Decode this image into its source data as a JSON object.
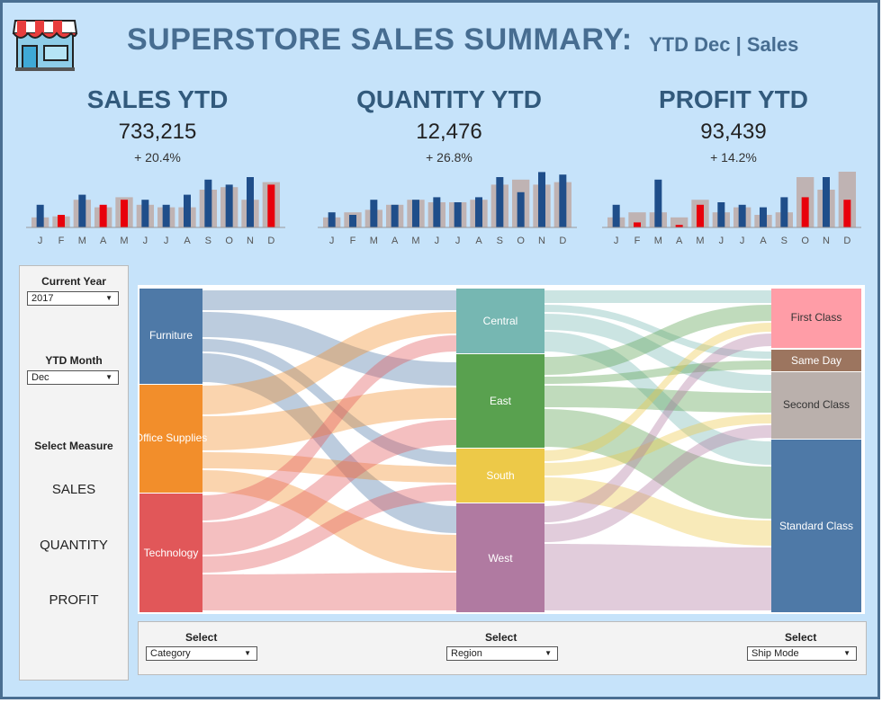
{
  "header": {
    "title": "SUPERSTORE SALES SUMMARY:",
    "subtitle": "YTD Dec | Sales",
    "store_icon": "storefront-icon"
  },
  "kpis": [
    {
      "label": "SALES YTD",
      "value": "733,215",
      "change": "+ 20.4%"
    },
    {
      "label": "QUANTITY YTD",
      "value": "12,476",
      "change": "+ 26.8%"
    },
    {
      "label": "PROFIT YTD",
      "value": "93,439",
      "change": "+ 14.2%"
    }
  ],
  "months": [
    "J",
    "F",
    "M",
    "A",
    "M",
    "J",
    "J",
    "A",
    "S",
    "O",
    "N",
    "D"
  ],
  "colors": {
    "current": "#1f4e8a",
    "current_highlight": "#e8000b",
    "previous": "#bfb3b3",
    "accent": "#476d91"
  },
  "chart_data": [
    {
      "type": "bar",
      "categories": [
        "J",
        "F",
        "M",
        "A",
        "M",
        "J",
        "J",
        "A",
        "S",
        "O",
        "N",
        "D"
      ],
      "series": [
        {
          "values": [
            0.45,
            0.25,
            0.65,
            0.45,
            0.55,
            0.55,
            0.45,
            0.65,
            0.95,
            0.85,
            1.0,
            0.85
          ]
        },
        {
          "values": [
            0.2,
            0.22,
            0.55,
            0.4,
            0.6,
            0.45,
            0.4,
            0.4,
            0.75,
            0.8,
            0.55,
            0.9
          ]
        }
      ],
      "highlight_months": [
        "F",
        "A",
        "M",
        "D"
      ]
    },
    {
      "type": "bar",
      "categories": [
        "J",
        "F",
        "M",
        "A",
        "M",
        "J",
        "J",
        "A",
        "S",
        "O",
        "N",
        "D"
      ],
      "series": [
        {
          "values": [
            0.3,
            0.25,
            0.55,
            0.45,
            0.55,
            0.6,
            0.5,
            0.6,
            1.0,
            0.7,
            1.1,
            1.05
          ]
        },
        {
          "values": [
            0.2,
            0.3,
            0.35,
            0.45,
            0.55,
            0.5,
            0.5,
            0.55,
            0.85,
            0.95,
            0.85,
            0.9
          ]
        }
      ]
    },
    {
      "type": "bar",
      "categories": [
        "J",
        "F",
        "M",
        "A",
        "M",
        "J",
        "J",
        "A",
        "S",
        "O",
        "N",
        "D"
      ],
      "series": [
        {
          "values": [
            0.45,
            0.1,
            0.95,
            0.05,
            0.45,
            0.5,
            0.45,
            0.4,
            0.6,
            0.6,
            1.0,
            0.55
          ]
        },
        {
          "values": [
            0.2,
            0.3,
            0.3,
            0.2,
            0.55,
            0.3,
            0.4,
            0.25,
            0.3,
            1.0,
            0.75,
            1.2
          ]
        }
      ],
      "highlight_months": [
        "F",
        "A",
        "M",
        "O",
        "D"
      ]
    }
  ],
  "panel": {
    "current_year_label": "Current Year",
    "current_year_value": "2017",
    "ytd_month_label": "YTD Month",
    "ytd_month_value": "Dec",
    "select_measure_label": "Select Measure",
    "measures": [
      "SALES",
      "QUANTITY",
      "PROFIT"
    ]
  },
  "sankey": {
    "categories": [
      {
        "name": "Furniture",
        "color": "#4e79a7"
      },
      {
        "name": "Office Supplies",
        "color": "#f28e2b"
      },
      {
        "name": "Technology",
        "color": "#e15759"
      }
    ],
    "regions": [
      {
        "name": "Central",
        "color": "#76b7b2"
      },
      {
        "name": "East",
        "color": "#59a14f"
      },
      {
        "name": "South",
        "color": "#edc948"
      },
      {
        "name": "West",
        "color": "#b07aa1"
      }
    ],
    "ship_modes": [
      {
        "name": "First Class",
        "color": "#ff9da7"
      },
      {
        "name": "Same Day",
        "color": "#9c755f"
      },
      {
        "name": "Second Class",
        "color": "#bab0ac"
      },
      {
        "name": "Standard Class",
        "color": "#4e79a7"
      }
    ]
  },
  "filters": [
    {
      "label": "Select",
      "value": "Category"
    },
    {
      "label": "Select",
      "value": "Region"
    },
    {
      "label": "Select",
      "value": "Ship Mode"
    }
  ]
}
